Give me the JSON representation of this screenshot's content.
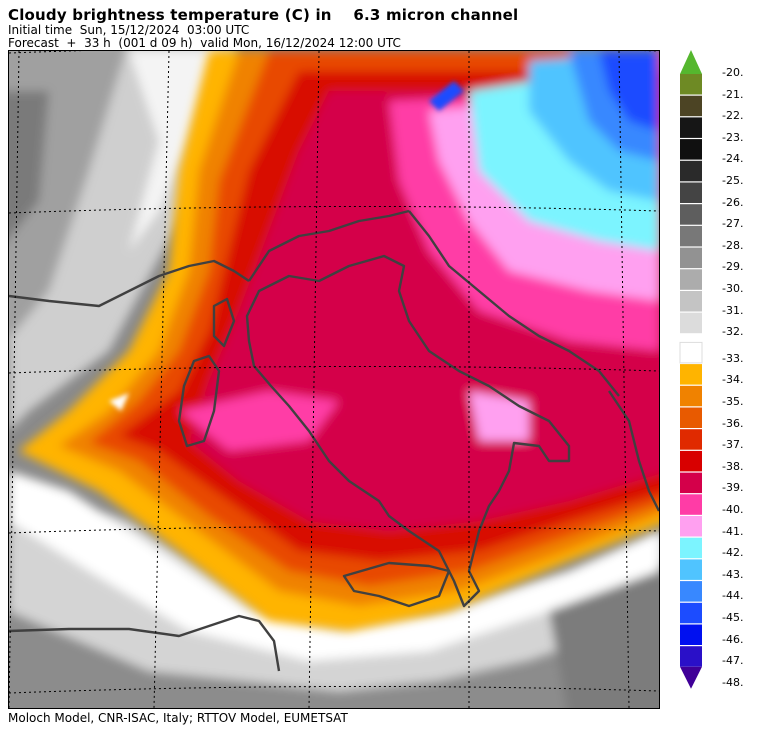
{
  "header": {
    "title": "Cloudy brightness temperature (C) in    6.3 micron channel",
    "initial_time": "Initial time  Sun, 15/12/2024  03:00 UTC",
    "forecast": "Forecast  +  33 h  (001 d 09 h)  valid Mon, 16/12/2024 12:00 UTC"
  },
  "footer": {
    "credits": "Moloch Model, CNR-ISAC, Italy; RTTOV Model, EUMETSAT"
  },
  "legend": {
    "unit": "C",
    "labels": [
      "-20.",
      "-21.",
      "-22.",
      "-23.",
      "-24.",
      "-25.",
      "-26.",
      "-27.",
      "-28.",
      "-29.",
      "-30.",
      "-31.",
      "-32.",
      "-33.",
      "-34.",
      "-35.",
      "-36.",
      "-37.",
      "-38.",
      "-39.",
      "-40.",
      "-41.",
      "-42.",
      "-43.",
      "-44.",
      "-45.",
      "-46.",
      "-47.",
      "-48."
    ],
    "colors": [
      "#55b72e",
      "#6e8a24",
      "#4c4424",
      "#161616",
      "#101010",
      "#2a2a2a",
      "#444444",
      "#5e5e5e",
      "#787878",
      "#929292",
      "#acacac",
      "#c4c4c4",
      "#dcdcdc",
      "#ffffff",
      "#ffb400",
      "#f08200",
      "#e85a00",
      "#e02a00",
      "#d80000",
      "#d4004a",
      "#ff3ca6",
      "#ffa0f0",
      "#7cf4ff",
      "#50c4ff",
      "#3888ff",
      "#1c4cff",
      "#0010f0",
      "#2a10c8",
      "#400098"
    ]
  },
  "map": {
    "region": "Italy and surrounding Mediterranean",
    "colors": {
      "border": "#404040",
      "graticule": "#000000"
    }
  }
}
